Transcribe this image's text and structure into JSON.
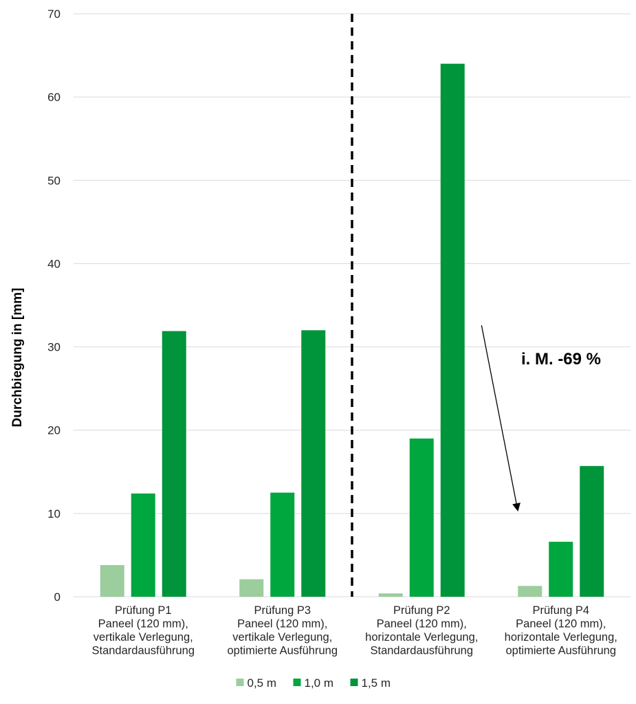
{
  "chart_data": {
    "type": "bar",
    "ylabel": "Durchbiegung in [mm]",
    "ylim": [
      0,
      70
    ],
    "yticks": [
      0,
      10,
      20,
      30,
      40,
      50,
      60,
      70
    ],
    "grid": true,
    "legend_position": "bottom",
    "categories": [
      [
        "Prüfung P1",
        "Paneel (120 mm),",
        "vertikale Verlegung,",
        "Standardausführung"
      ],
      [
        "Prüfung P3",
        "Paneel (120 mm),",
        "vertikale Verlegung,",
        "optimierte Ausführung"
      ],
      [
        "Prüfung P2",
        "Paneel (120 mm),",
        "horizontale Verlegung,",
        "Standardausführung"
      ],
      [
        "Prüfung P4",
        "Paneel (120 mm),",
        "horizontale Verlegung,",
        "optimierte Ausführung"
      ]
    ],
    "series": [
      {
        "name": "0,5 m",
        "color": "#9ccd9d",
        "values": [
          3.8,
          2.1,
          0.4,
          1.3
        ]
      },
      {
        "name": "1,0 m",
        "color": "#00a63e",
        "values": [
          12.4,
          12.5,
          19.0,
          6.6
        ]
      },
      {
        "name": "1,5 m",
        "color": "#00953b",
        "values": [
          31.9,
          32.0,
          64.0,
          15.7
        ]
      }
    ],
    "annotation": {
      "text": "i. M. -69 %",
      "arrow_from_category": "Prüfung P2",
      "arrow_to_category": "Prüfung P4"
    },
    "separator": {
      "style": "dashed",
      "between_categories": [
        "Prüfung P3",
        "Prüfung P2"
      ]
    }
  }
}
